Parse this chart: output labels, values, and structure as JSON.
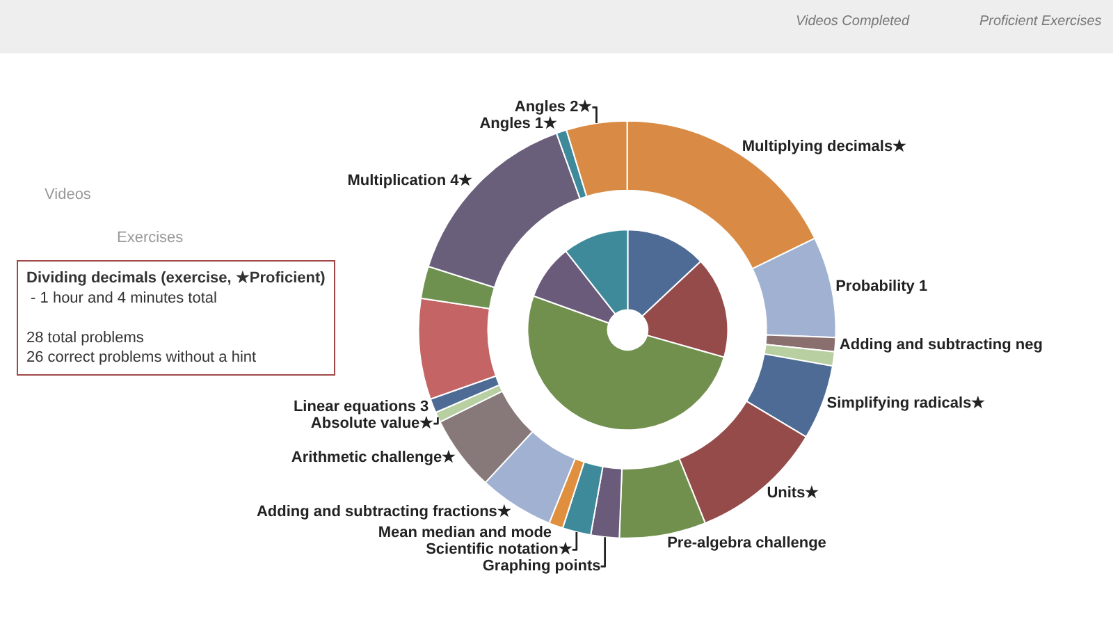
{
  "chart_data": {
    "type": "donut",
    "categories": [
      "Multiplying decimals★",
      "Probability 1",
      "Adding and subtracting neg",
      null,
      "Simplifying radicals★",
      "Units★",
      "Pre-algebra challenge",
      "Graphing points",
      "Scientific notation★",
      "Mean median and mode",
      "Adding and subtracting fractions★",
      "Arithmetic challenge★",
      "Absolute value★",
      "Linear equations 3",
      null,
      null,
      "Multiplication 4★",
      "Angles 1★",
      "Angles 2★"
    ],
    "series": [
      {
        "values": [
          17.8,
          7.8,
          1.1,
          1.1,
          5.8,
          10.3,
          6.7,
          2.2,
          2.2,
          1.1,
          5.8,
          5.8,
          0.8,
          1.1,
          7.8,
          2.5,
          14.6,
          0.8,
          4.7
        ],
        "colors": [
          "#d98b45",
          "#a0b1d1",
          "#8a6f6f",
          "#b8cfa2",
          "#4d6b94",
          "#964b4b",
          "#71904e",
          "#6b5b7b",
          "#3e8a9a",
          "#e08f3e",
          "#a0b1d1",
          "#877979",
          "#b8cfa2",
          "#4d6b94",
          "#c46464",
          "#6f9150",
          "#6a5f7a",
          "#3e8a9a",
          "#d98b45"
        ]
      },
      {
        "values": [
          13.0,
          16.4,
          51.1,
          8.9,
          10.6,
          null,
          null,
          null,
          null,
          null,
          null,
          null,
          null,
          null,
          null,
          null,
          null,
          null,
          null
        ],
        "colors": [
          "#4d6b94",
          "#964b4b",
          "#71904e",
          "#6b5b7b",
          "#3e8a9a",
          null,
          null,
          null,
          null,
          null,
          null,
          null,
          null,
          null,
          null,
          null,
          null,
          null,
          null
        ]
      }
    ],
    "annotations": [
      "Videos Completed",
      "Proficient Exercises",
      "Videos",
      "Exercises",
      "Dividing decimals (exercise, ★Proficient)\n - 1 hour and 4 minutes total\n\n28 total problems\n26 correct problems without a hint"
    ]
  }
}
